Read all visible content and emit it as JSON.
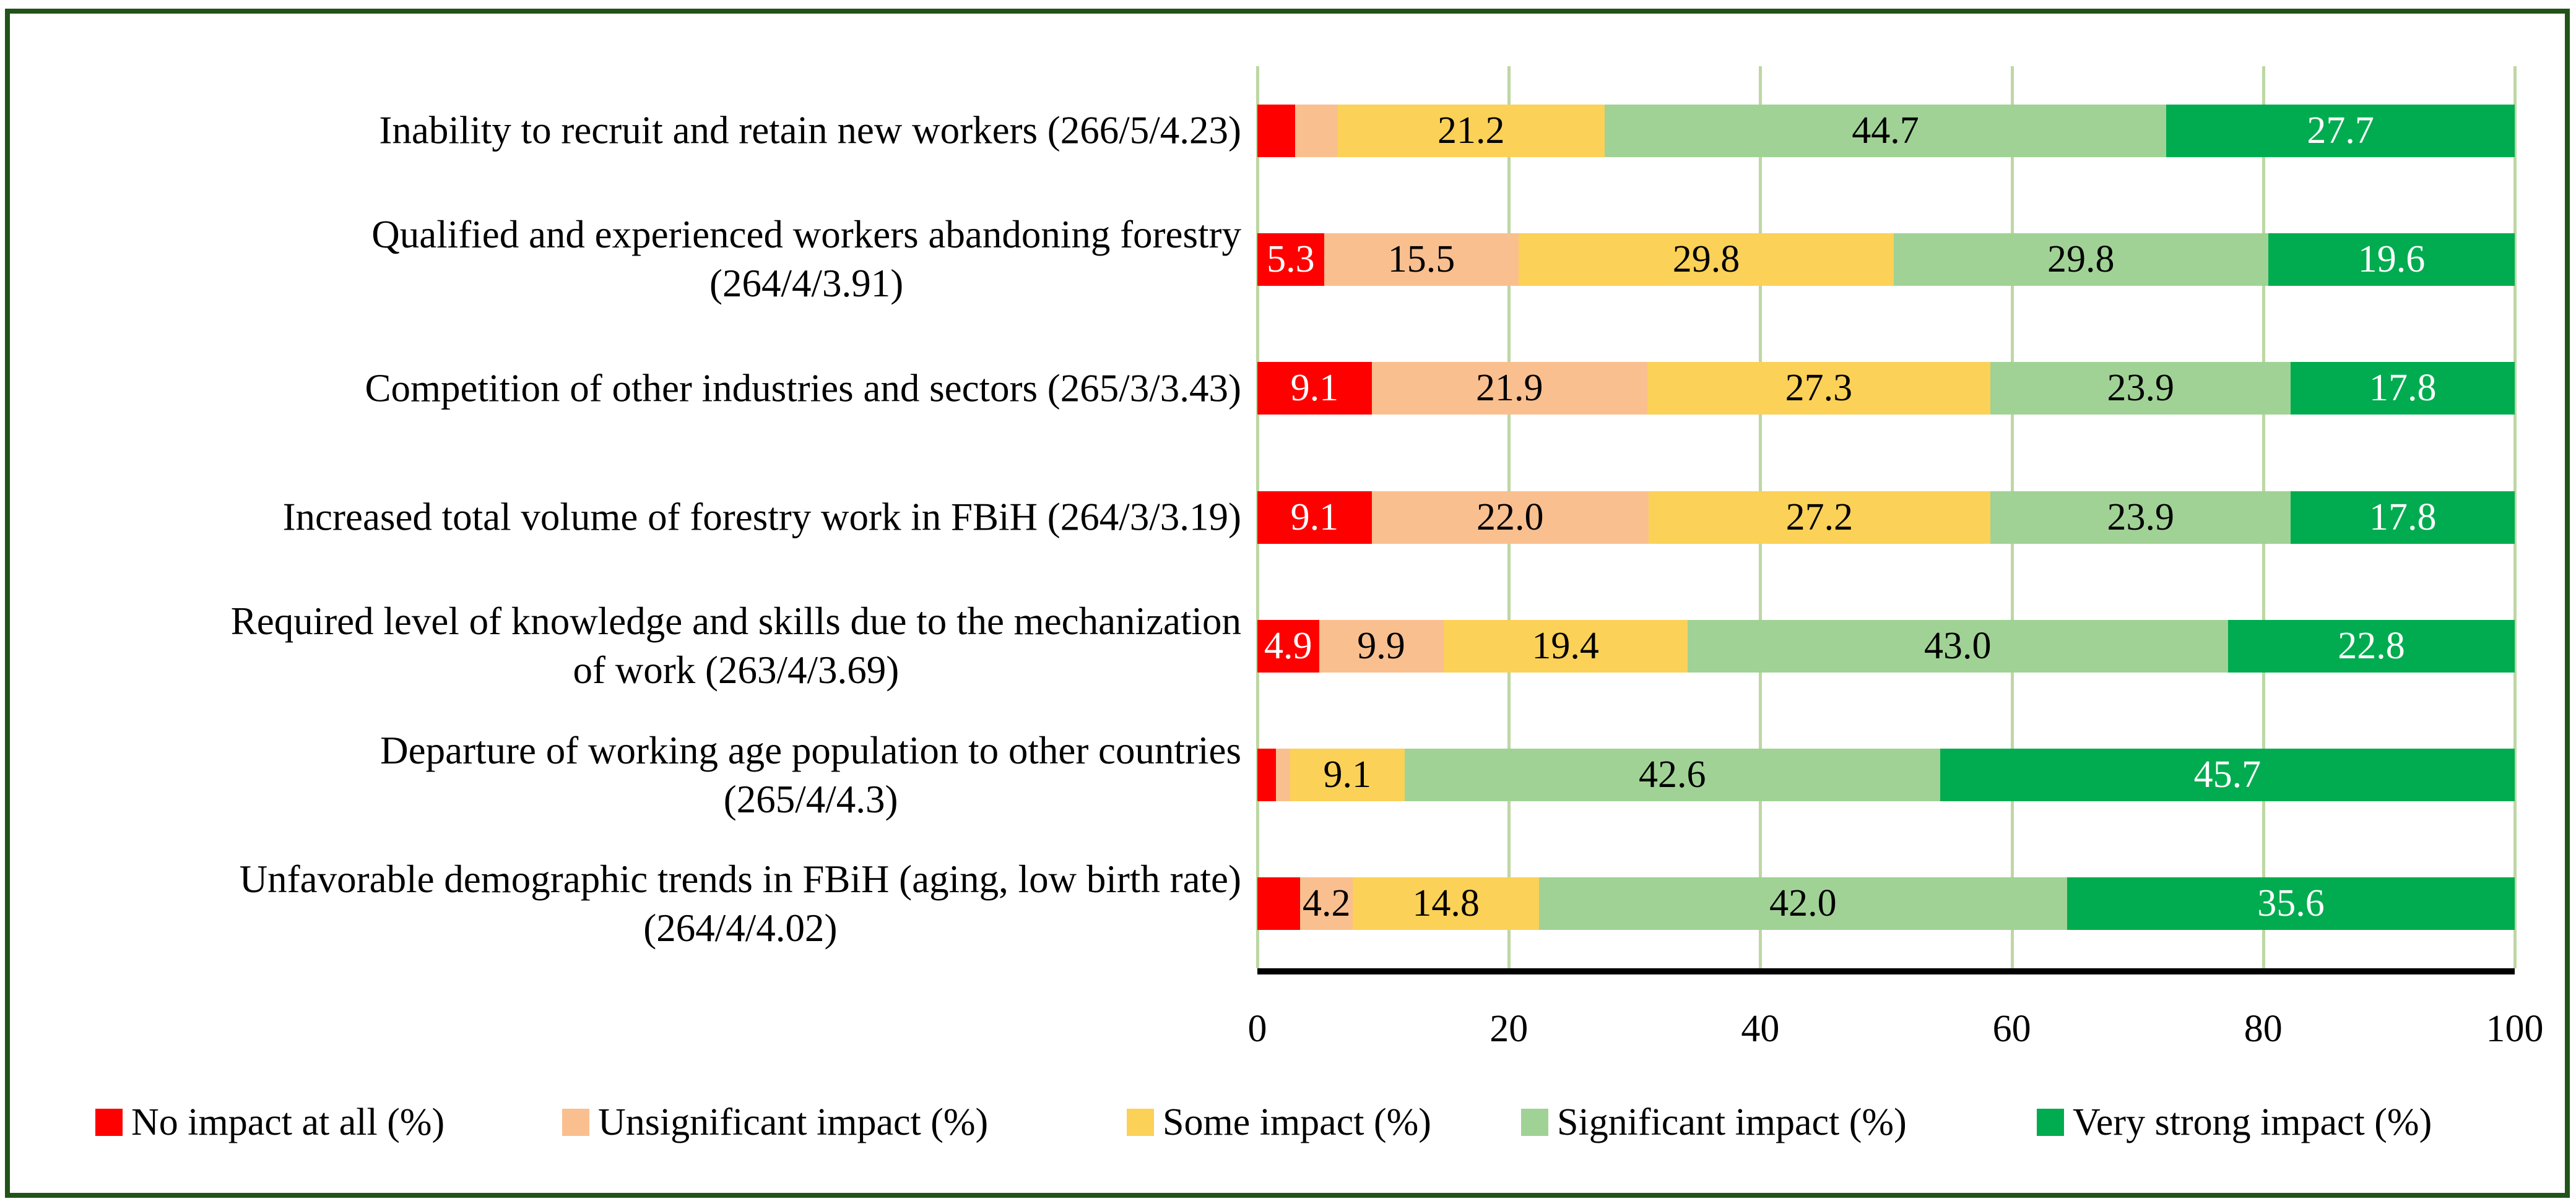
{
  "chart_data": {
    "type": "bar",
    "orientation": "horizontal",
    "stacked": true,
    "unit": "%",
    "title": "",
    "x_axis": {
      "min": 0,
      "max": 100,
      "tick_labels": [
        "0",
        "20",
        "40",
        "60",
        "80",
        "100"
      ],
      "gridlines": true
    },
    "legend_position": "bottom",
    "categories": [
      {
        "lines": [
          "Inability to recruit and retain new workers (266/5/4.23)"
        ]
      },
      {
        "lines": [
          "Qualified and experienced workers abandoning forestry",
          "(264/4/3.91)"
        ]
      },
      {
        "lines": [
          "Competition of other industries and sectors (265/3/3.43)"
        ]
      },
      {
        "lines": [
          "Increased total volume of forestry work in FBiH (264/3/3.19)"
        ]
      },
      {
        "lines": [
          "Required level of knowledge and skills due to the mechanization",
          "of work (263/4/3.69)"
        ]
      },
      {
        "lines": [
          "Departure of working age population to other countries",
          "(265/4/4.3)"
        ]
      },
      {
        "lines": [
          "Unfavorable demographic trends in FBiH (aging, low birth rate)",
          "(264/4/4.02)"
        ]
      }
    ],
    "series": [
      {
        "name": "No impact at all (%)",
        "slug": "no-impact-at-all",
        "color": "#FF0000",
        "label_color": "#FFFFFF",
        "values": [
          3.0,
          5.3,
          9.1,
          9.1,
          4.9,
          1.5,
          3.4
        ],
        "data_labels": [
          "",
          "5.3",
          "9.1",
          "9.1",
          "4.9",
          "",
          ""
        ]
      },
      {
        "name": "Unsignificant impact (%)",
        "slug": "unsignificant-impact",
        "color": "#FABF8F",
        "label_color": "#000000",
        "values": [
          3.4,
          15.5,
          21.9,
          22.0,
          9.9,
          1.1,
          4.2
        ],
        "data_labels": [
          "",
          "15.5",
          "21.9",
          "22.0",
          "9.9",
          "",
          "4.2"
        ]
      },
      {
        "name": "Some impact (%)",
        "slug": "some-impact",
        "color": "#FBD157",
        "label_color": "#000000",
        "values": [
          21.2,
          29.8,
          27.3,
          27.2,
          19.4,
          9.1,
          14.8
        ],
        "data_labels": [
          "21.2",
          "29.8",
          "27.3",
          "27.2",
          "19.4",
          "9.1",
          "14.8"
        ]
      },
      {
        "name": "Significant impact (%)",
        "slug": "significant-impact",
        "color": "#A0D295",
        "label_color": "#000000",
        "values": [
          44.7,
          29.8,
          23.9,
          23.9,
          43.0,
          42.6,
          42.0
        ],
        "data_labels": [
          "44.7",
          "29.8",
          "23.9",
          "23.9",
          "43.0",
          "42.6",
          "42.0"
        ]
      },
      {
        "name": "Very strong impact (%)",
        "slug": "very-strong-impact",
        "color": "#00AC4F",
        "label_color": "#FFFFFF",
        "values": [
          27.7,
          19.6,
          17.8,
          17.8,
          22.8,
          45.7,
          35.6
        ],
        "data_labels": [
          "27.7",
          "19.6",
          "17.8",
          "17.8",
          "22.8",
          "45.7",
          "35.6"
        ]
      }
    ]
  },
  "styles": {
    "frame_border_color": "#215318",
    "gridline_color": "#BDD7A3",
    "axis_line_color": "#000000",
    "background_color": "#FFFFFF",
    "text_color": "#000000"
  }
}
